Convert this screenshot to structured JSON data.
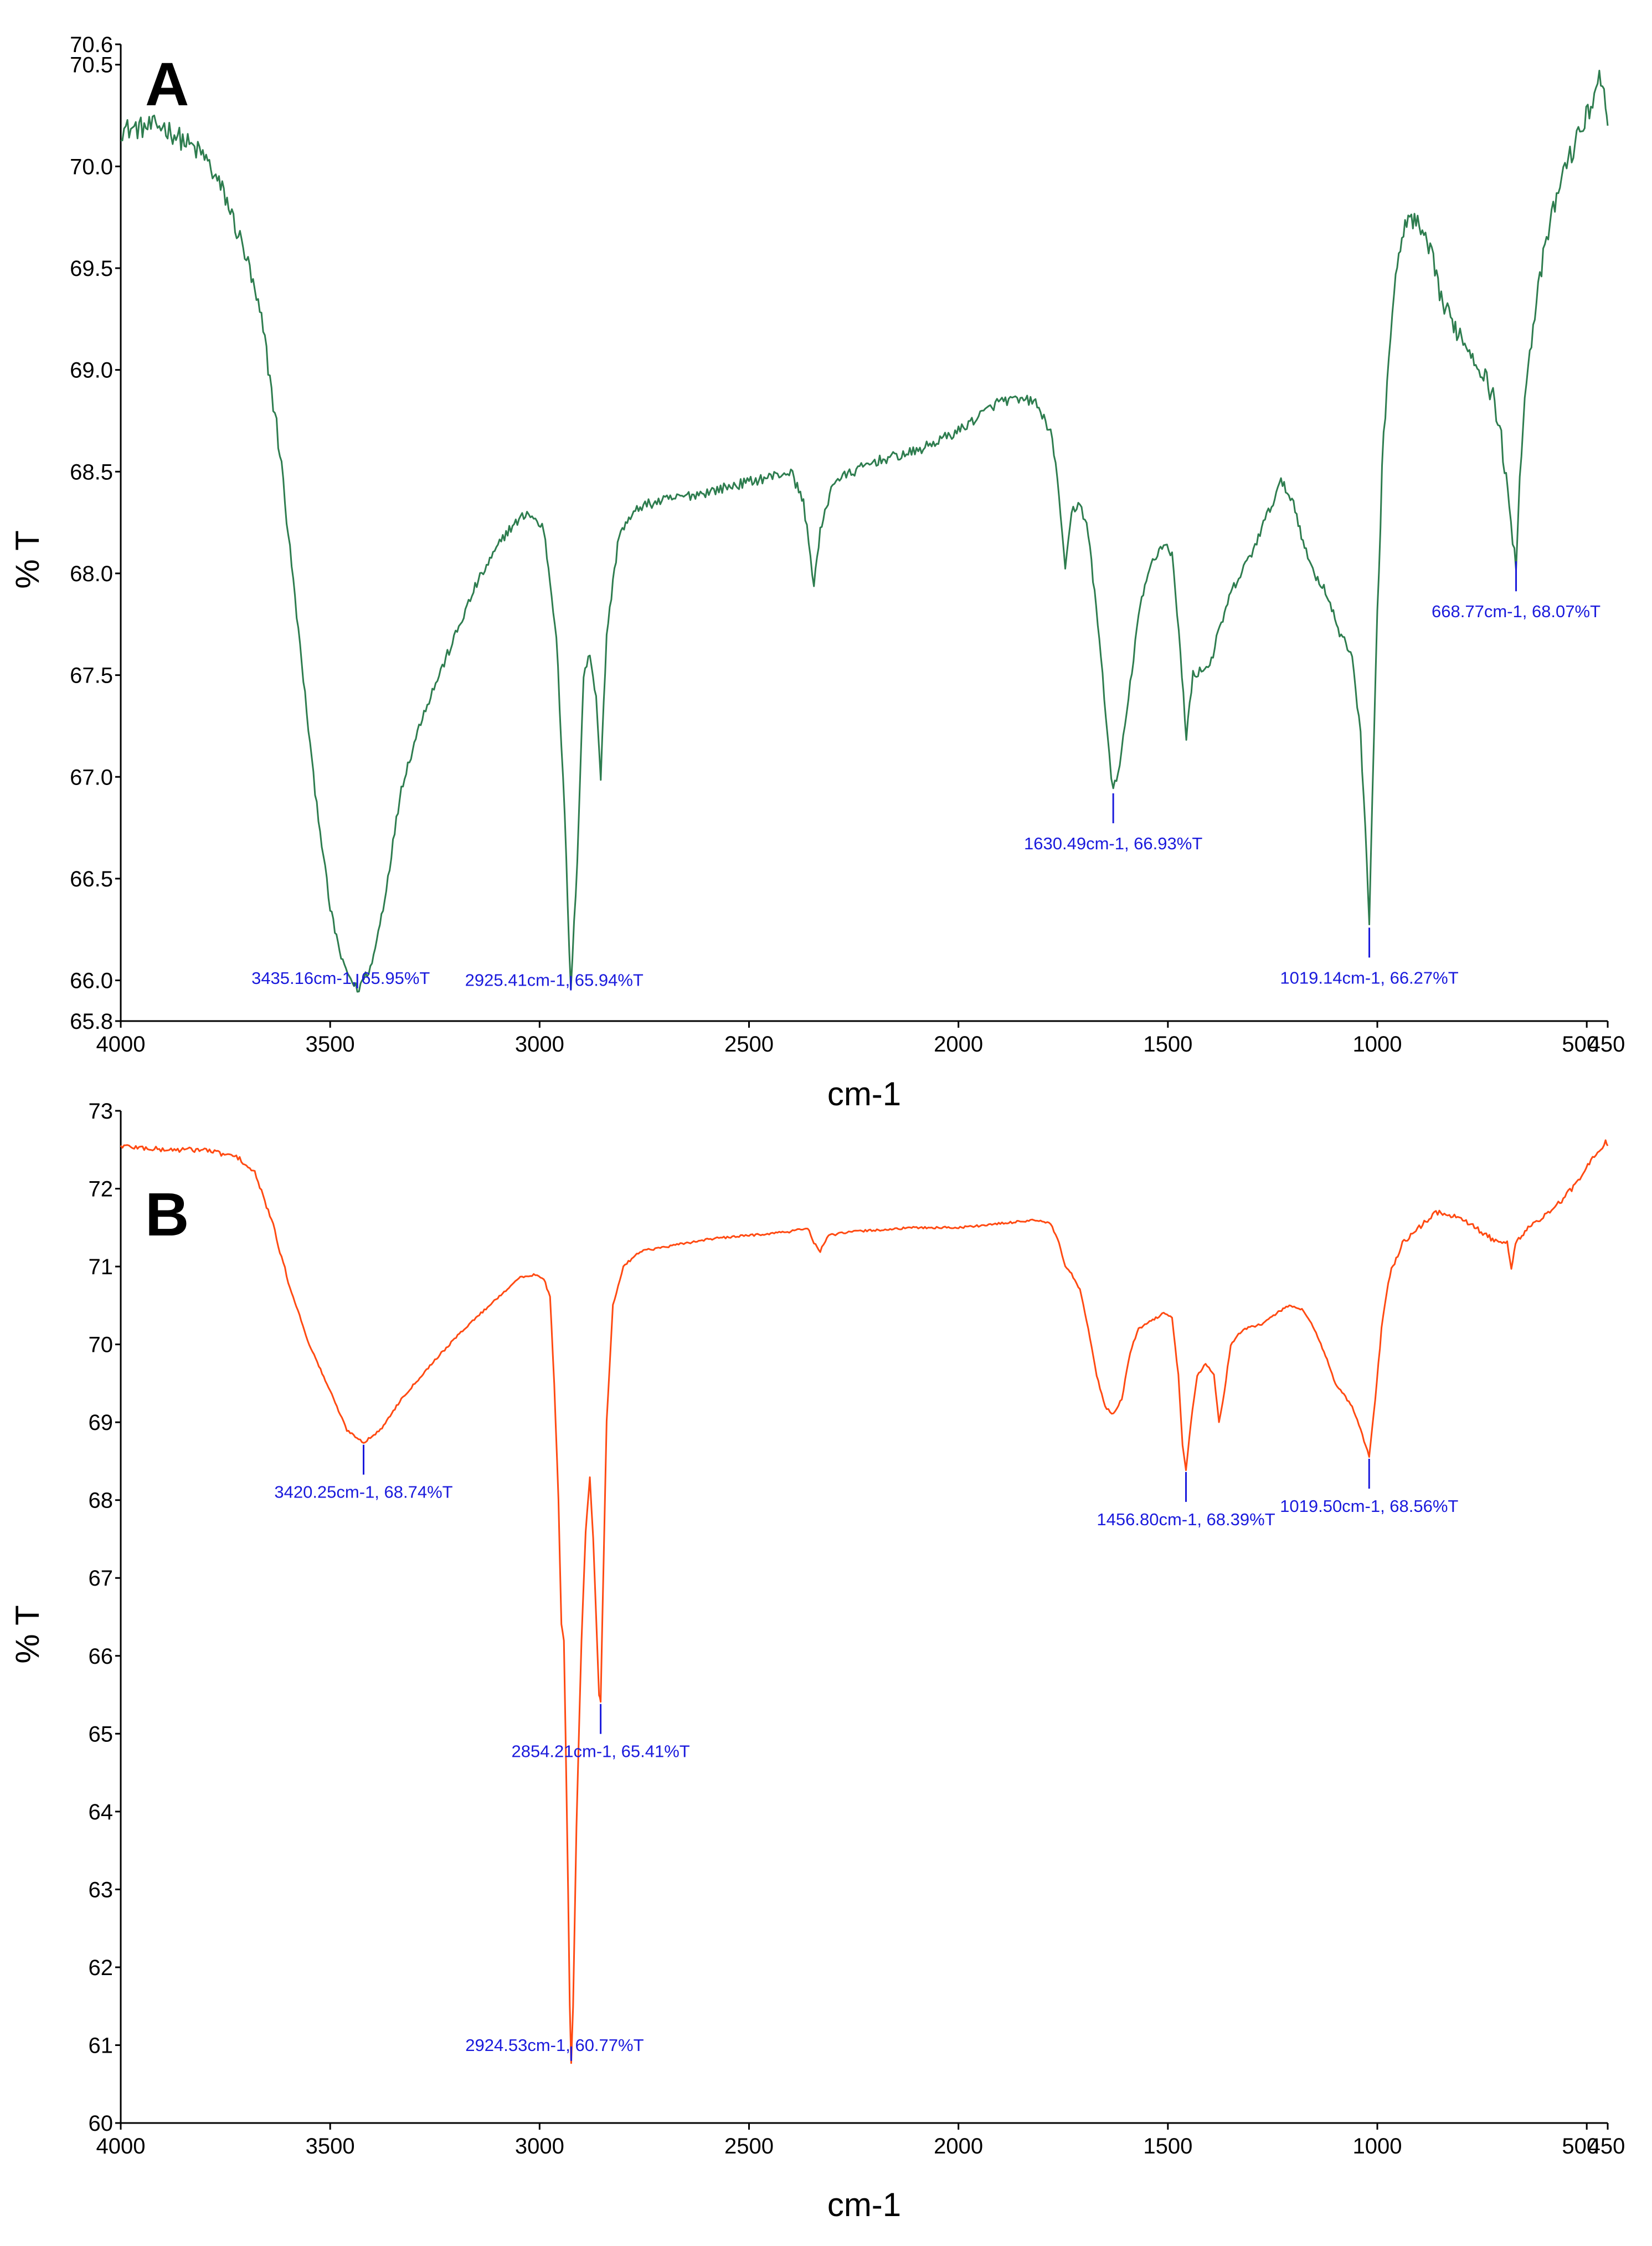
{
  "chart_data": [
    {
      "type": "line",
      "panel_label": "A",
      "xlabel": "cm-1",
      "ylabel": "% T",
      "xlim": [
        4000,
        450
      ],
      "ylim": [
        65.8,
        70.6
      ],
      "x_ticks": [
        4000,
        3500,
        3000,
        2500,
        2000,
        1500,
        1000,
        500
      ],
      "x_tick_labels": [
        "4000",
        "3500",
        "3000",
        "2500",
        "2000",
        "1500",
        "1000",
        "500"
      ],
      "x_end_label": "450",
      "y_ticks": [
        65.8,
        66.0,
        66.5,
        67.0,
        67.5,
        68.0,
        68.5,
        69.0,
        69.5,
        70.0,
        70.5,
        70.6
      ],
      "y_tick_labels": [
        "65.8",
        "66.0",
        "66.5",
        "67.0",
        "67.5",
        "68.0",
        "68.5",
        "69.0",
        "69.5",
        "70.0",
        "70.5",
        "70.6"
      ],
      "color": "#2e7d4f",
      "noise": 0.05,
      "series": [
        {
          "name": "A",
          "points": [
            [
              4000,
              70.18
            ],
            [
              3900,
              70.2
            ],
            [
              3800,
              70.05
            ],
            [
              3750,
              69.85
            ],
            [
              3700,
              69.55
            ],
            [
              3660,
              69.2
            ],
            [
              3620,
              68.6
            ],
            [
              3580,
              67.8
            ],
            [
              3540,
              67.0
            ],
            [
              3500,
              66.35
            ],
            [
              3470,
              66.08
            ],
            [
              3435.16,
              65.95
            ],
            [
              3400,
              66.08
            ],
            [
              3370,
              66.4
            ],
            [
              3330,
              66.95
            ],
            [
              3280,
              67.3
            ],
            [
              3220,
              67.6
            ],
            [
              3150,
              67.95
            ],
            [
              3080,
              68.2
            ],
            [
              3030,
              68.3
            ],
            [
              2990,
              68.22
            ],
            [
              2960,
              67.7
            ],
            [
              2940,
              66.8
            ],
            [
              2925.41,
              65.94
            ],
            [
              2910,
              66.6
            ],
            [
              2895,
              67.5
            ],
            [
              2880,
              67.6
            ],
            [
              2865,
              67.4
            ],
            [
              2854,
              67.0
            ],
            [
              2840,
              67.7
            ],
            [
              2810,
              68.2
            ],
            [
              2760,
              68.33
            ],
            [
              2700,
              68.36
            ],
            [
              2600,
              68.4
            ],
            [
              2500,
              68.45
            ],
            [
              2400,
              68.5
            ],
            [
              2370,
              68.35
            ],
            [
              2345,
              67.95
            ],
            [
              2330,
              68.2
            ],
            [
              2300,
              68.45
            ],
            [
              2200,
              68.55
            ],
            [
              2100,
              68.6
            ],
            [
              2000,
              68.7
            ],
            [
              1900,
              68.85
            ],
            [
              1820,
              68.85
            ],
            [
              1780,
              68.7
            ],
            [
              1760,
              68.4
            ],
            [
              1745,
              68.0
            ],
            [
              1730,
              68.3
            ],
            [
              1710,
              68.35
            ],
            [
              1690,
              68.2
            ],
            [
              1660,
              67.6
            ],
            [
              1640,
              67.1
            ],
            [
              1630.49,
              66.93
            ],
            [
              1615,
              67.05
            ],
            [
              1590,
              67.45
            ],
            [
              1570,
              67.8
            ],
            [
              1540,
              68.05
            ],
            [
              1510,
              68.15
            ],
            [
              1490,
              68.1
            ],
            [
              1470,
              67.6
            ],
            [
              1456,
              67.2
            ],
            [
              1440,
              67.5
            ],
            [
              1400,
              67.55
            ],
            [
              1380,
              67.7
            ],
            [
              1350,
              67.9
            ],
            [
              1300,
              68.1
            ],
            [
              1260,
              68.3
            ],
            [
              1230,
              68.45
            ],
            [
              1200,
              68.35
            ],
            [
              1170,
              68.1
            ],
            [
              1150,
              68.0
            ],
            [
              1120,
              67.9
            ],
            [
              1090,
              67.7
            ],
            [
              1060,
              67.6
            ],
            [
              1040,
              67.2
            ],
            [
              1025,
              66.6
            ],
            [
              1019.14,
              66.27
            ],
            [
              1012,
              66.9
            ],
            [
              1000,
              67.8
            ],
            [
              985,
              68.7
            ],
            [
              960,
              69.4
            ],
            [
              930,
              69.75
            ],
            [
              900,
              69.7
            ],
            [
              870,
              69.55
            ],
            [
              840,
              69.3
            ],
            [
              810,
              69.2
            ],
            [
              780,
              69.1
            ],
            [
              750,
              69.0
            ],
            [
              720,
              68.85
            ],
            [
              700,
              68.6
            ],
            [
              685,
              68.3
            ],
            [
              668.77,
              68.07
            ],
            [
              660,
              68.5
            ],
            [
              640,
              69.05
            ],
            [
              600,
              69.6
            ],
            [
              560,
              69.95
            ],
            [
              520,
              70.15
            ],
            [
              490,
              70.3
            ],
            [
              470,
              70.45
            ],
            [
              455,
              70.3
            ],
            [
              450,
              70.2
            ]
          ]
        }
      ],
      "peak_annotations": [
        {
          "x": 3435.16,
          "y": 65.95,
          "label": "3435.16cm-1, 65.95%T"
        },
        {
          "x": 2925.41,
          "y": 65.94,
          "label": "2925.41cm-1, 65.94%T"
        },
        {
          "x": 1630.49,
          "y": 66.93,
          "label": "1630.49cm-1, 66.93%T"
        },
        {
          "x": 1019.14,
          "y": 66.27,
          "label": "1019.14cm-1, 66.27%T"
        },
        {
          "x": 668.77,
          "y": 68.07,
          "label": "668.77cm-1, 68.07%T"
        }
      ]
    },
    {
      "type": "line",
      "panel_label": "B",
      "xlabel": "cm-1",
      "ylabel": "% T",
      "xlim": [
        4000,
        450
      ],
      "ylim": [
        60,
        73
      ],
      "x_ticks": [
        4000,
        3500,
        3000,
        2500,
        2000,
        1500,
        1000,
        500
      ],
      "x_tick_labels": [
        "4000",
        "3500",
        "3000",
        "2500",
        "2000",
        "1500",
        "1000",
        "500"
      ],
      "x_end_label": "450",
      "y_ticks": [
        60,
        61,
        62,
        63,
        64,
        65,
        66,
        67,
        68,
        69,
        70,
        71,
        72,
        73
      ],
      "y_tick_labels": [
        "60",
        "61",
        "62",
        "63",
        "64",
        "65",
        "66",
        "67",
        "68",
        "69",
        "70",
        "71",
        "72",
        "73"
      ],
      "color": "#ff4a12",
      "noise": 0.03,
      "series": [
        {
          "name": "B",
          "points": [
            [
              4000,
              72.55
            ],
            [
              3900,
              72.5
            ],
            [
              3800,
              72.5
            ],
            [
              3720,
              72.4
            ],
            [
              3680,
              72.2
            ],
            [
              3640,
              71.6
            ],
            [
              3600,
              70.8
            ],
            [
              3550,
              70.0
            ],
            [
              3500,
              69.4
            ],
            [
              3460,
              68.9
            ],
            [
              3420.25,
              68.74
            ],
            [
              3380,
              68.9
            ],
            [
              3330,
              69.3
            ],
            [
              3250,
              69.8
            ],
            [
              3180,
              70.2
            ],
            [
              3100,
              70.6
            ],
            [
              3050,
              70.85
            ],
            [
              3010,
              70.9
            ],
            [
              2990,
              70.85
            ],
            [
              2975,
              70.6
            ],
            [
              2965,
              69.5
            ],
            [
              2955,
              68.0
            ],
            [
              2948,
              66.4
            ],
            [
              2942,
              66.2
            ],
            [
              2938,
              65.0
            ],
            [
              2932,
              63.0
            ],
            [
              2928,
              61.5
            ],
            [
              2924.53,
              60.77
            ],
            [
              2920,
              61.5
            ],
            [
              2912,
              63.8
            ],
            [
              2900,
              66.2
            ],
            [
              2890,
              67.6
            ],
            [
              2880,
              68.3
            ],
            [
              2872,
              67.5
            ],
            [
              2865,
              66.5
            ],
            [
              2858,
              65.5
            ],
            [
              2854.21,
              65.41
            ],
            [
              2850,
              66.5
            ],
            [
              2840,
              69.0
            ],
            [
              2825,
              70.5
            ],
            [
              2800,
              71.0
            ],
            [
              2760,
              71.2
            ],
            [
              2700,
              71.25
            ],
            [
              2600,
              71.35
            ],
            [
              2500,
              71.4
            ],
            [
              2400,
              71.45
            ],
            [
              2360,
              71.5
            ],
            [
              2345,
              71.3
            ],
            [
              2330,
              71.2
            ],
            [
              2310,
              71.4
            ],
            [
              2250,
              71.45
            ],
            [
              2100,
              71.5
            ],
            [
              2000,
              71.5
            ],
            [
              1900,
              71.55
            ],
            [
              1820,
              71.6
            ],
            [
              1780,
              71.55
            ],
            [
              1760,
              71.3
            ],
            [
              1745,
              71.0
            ],
            [
              1730,
              70.9
            ],
            [
              1710,
              70.7
            ],
            [
              1690,
              70.2
            ],
            [
              1670,
              69.6
            ],
            [
              1650,
              69.2
            ],
            [
              1630,
              69.1
            ],
            [
              1610,
              69.3
            ],
            [
              1590,
              69.9
            ],
            [
              1570,
              70.2
            ],
            [
              1540,
              70.3
            ],
            [
              1510,
              70.4
            ],
            [
              1490,
              70.35
            ],
            [
              1475,
              69.6
            ],
            [
              1465,
              68.7
            ],
            [
              1456.8,
              68.39
            ],
            [
              1445,
              69.0
            ],
            [
              1430,
              69.6
            ],
            [
              1410,
              69.75
            ],
            [
              1390,
              69.6
            ],
            [
              1378,
              69.0
            ],
            [
              1365,
              69.4
            ],
            [
              1350,
              70.0
            ],
            [
              1320,
              70.2
            ],
            [
              1280,
              70.25
            ],
            [
              1240,
              70.4
            ],
            [
              1210,
              70.5
            ],
            [
              1180,
              70.45
            ],
            [
              1150,
              70.2
            ],
            [
              1120,
              69.8
            ],
            [
              1100,
              69.5
            ],
            [
              1080,
              69.35
            ],
            [
              1060,
              69.2
            ],
            [
              1040,
              68.9
            ],
            [
              1019.5,
              68.56
            ],
            [
              1005,
              69.3
            ],
            [
              990,
              70.2
            ],
            [
              970,
              70.9
            ],
            [
              940,
              71.3
            ],
            [
              900,
              71.5
            ],
            [
              860,
              71.7
            ],
            [
              820,
              71.65
            ],
            [
              780,
              71.55
            ],
            [
              740,
              71.4
            ],
            [
              710,
              71.3
            ],
            [
              690,
              71.3
            ],
            [
              680,
              71.0
            ],
            [
              670,
              71.3
            ],
            [
              640,
              71.5
            ],
            [
              600,
              71.65
            ],
            [
              560,
              71.85
            ],
            [
              520,
              72.1
            ],
            [
              490,
              72.35
            ],
            [
              470,
              72.5
            ],
            [
              455,
              72.6
            ],
            [
              450,
              72.55
            ]
          ]
        }
      ],
      "peak_annotations": [
        {
          "x": 3420.25,
          "y": 68.74,
          "label": "3420.25cm-1, 68.74%T"
        },
        {
          "x": 2854.21,
          "y": 65.41,
          "label": "2854.21cm-1, 65.41%T"
        },
        {
          "x": 2924.53,
          "y": 60.77,
          "label": "2924.53cm-1, 60.77%T"
        },
        {
          "x": 1456.8,
          "y": 68.39,
          "label": "1456.80cm-1, 68.39%T"
        },
        {
          "x": 1019.5,
          "y": 68.56,
          "label": "1019.50cm-1, 68.56%T"
        }
      ]
    }
  ]
}
